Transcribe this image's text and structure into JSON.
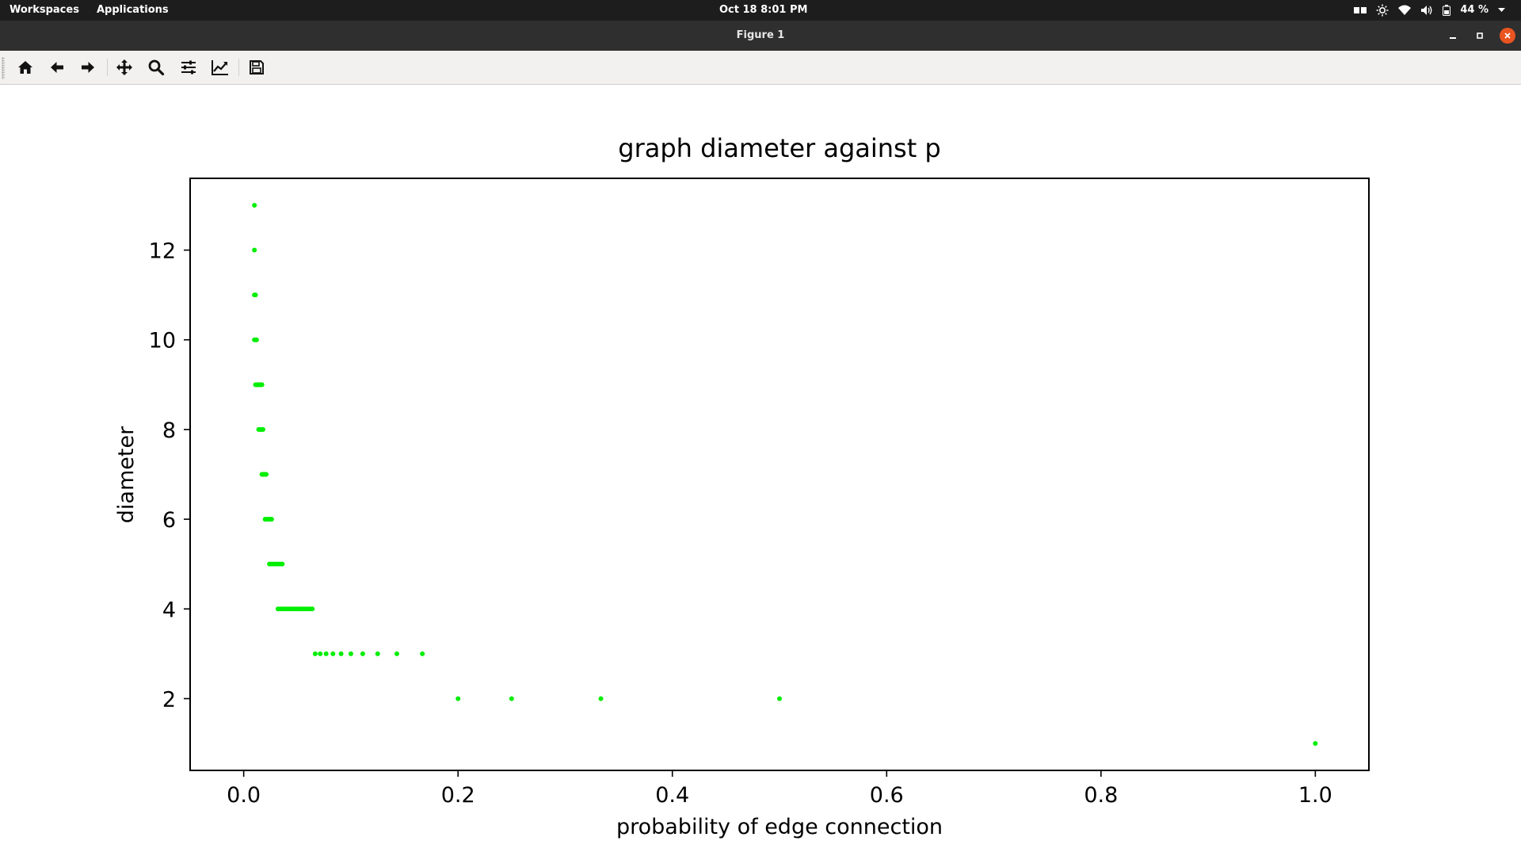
{
  "system_bar": {
    "workspaces_label": "Workspaces",
    "applications_label": "Applications",
    "clock": "Oct 18   8:01 PM",
    "battery_label": "44 %"
  },
  "window": {
    "title": "Figure 1"
  },
  "toolbar": {
    "tools": [
      "home",
      "back",
      "forward",
      "pan",
      "zoom",
      "configure-subplots",
      "edit-axis",
      "save"
    ]
  },
  "colors": {
    "marker": "#00ee00",
    "close_button": "#e95420"
  },
  "chart_data": {
    "type": "scatter",
    "title": "graph diameter against p",
    "xlabel": "probability of edge connection",
    "ylabel": "diameter",
    "xlim": [
      -0.05,
      1.05
    ],
    "ylim": [
      0.4,
      13.6
    ],
    "xticks": [
      0.0,
      0.2,
      0.4,
      0.6,
      0.8,
      1.0
    ],
    "xtick_labels": [
      "0.0",
      "0.2",
      "0.4",
      "0.6",
      "0.8",
      "1.0"
    ],
    "yticks": [
      2,
      4,
      6,
      8,
      10,
      12
    ],
    "ytick_labels": [
      "2",
      "4",
      "6",
      "8",
      "10",
      "12"
    ],
    "grid": false,
    "marker_color": "#00ee00",
    "points": [
      [
        0.01,
        13
      ],
      [
        0.01,
        12
      ],
      [
        0.01,
        11
      ],
      [
        0.011,
        11
      ],
      [
        0.01,
        10
      ],
      [
        0.011,
        10
      ],
      [
        0.012,
        10
      ],
      [
        0.011,
        9
      ],
      [
        0.012,
        9
      ],
      [
        0.013,
        9
      ],
      [
        0.014,
        9
      ],
      [
        0.015,
        9
      ],
      [
        0.016,
        9
      ],
      [
        0.017,
        9
      ],
      [
        0.014,
        8
      ],
      [
        0.015,
        8
      ],
      [
        0.016,
        8
      ],
      [
        0.017,
        8
      ],
      [
        0.018,
        8
      ],
      [
        0.017,
        7
      ],
      [
        0.018,
        7
      ],
      [
        0.019,
        7
      ],
      [
        0.02,
        7
      ],
      [
        0.021,
        7
      ],
      [
        0.02,
        6
      ],
      [
        0.021,
        6
      ],
      [
        0.022,
        6
      ],
      [
        0.023,
        6
      ],
      [
        0.024,
        6
      ],
      [
        0.025,
        6
      ],
      [
        0.026,
        6
      ],
      [
        0.024,
        5
      ],
      [
        0.026,
        5
      ],
      [
        0.028,
        5
      ],
      [
        0.03,
        5
      ],
      [
        0.032,
        5
      ],
      [
        0.034,
        5
      ],
      [
        0.036,
        5
      ],
      [
        0.032,
        4
      ],
      [
        0.034,
        4
      ],
      [
        0.036,
        4
      ],
      [
        0.038,
        4
      ],
      [
        0.04,
        4
      ],
      [
        0.042,
        4
      ],
      [
        0.044,
        4
      ],
      [
        0.046,
        4
      ],
      [
        0.048,
        4
      ],
      [
        0.05,
        4
      ],
      [
        0.052,
        4
      ],
      [
        0.054,
        4
      ],
      [
        0.056,
        4
      ],
      [
        0.058,
        4
      ],
      [
        0.06,
        4
      ],
      [
        0.062,
        4
      ],
      [
        0.064,
        4
      ],
      [
        0.0667,
        3
      ],
      [
        0.0714,
        3
      ],
      [
        0.0769,
        3
      ],
      [
        0.0833,
        3
      ],
      [
        0.0909,
        3
      ],
      [
        0.1,
        3
      ],
      [
        0.1111,
        3
      ],
      [
        0.125,
        3
      ],
      [
        0.1429,
        3
      ],
      [
        0.1667,
        3
      ],
      [
        0.2,
        2
      ],
      [
        0.25,
        2
      ],
      [
        0.3333,
        2
      ],
      [
        0.5,
        2
      ],
      [
        1.0,
        1
      ]
    ]
  }
}
